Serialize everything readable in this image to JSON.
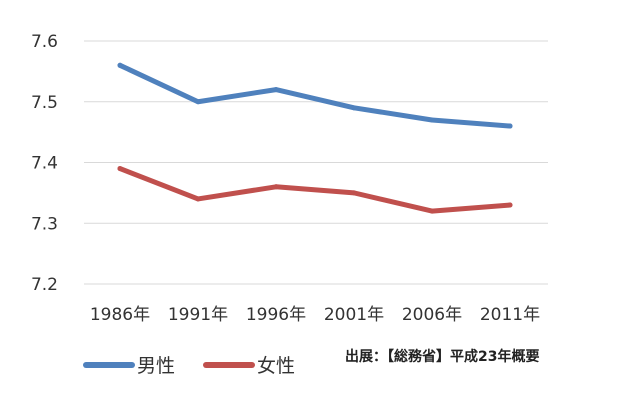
{
  "chart_data": {
    "type": "line",
    "categories": [
      "1986年",
      "1991年",
      "1996年",
      "2001年",
      "2006年",
      "2011年"
    ],
    "series": [
      {
        "name": "男性",
        "values": [
          7.56,
          7.5,
          7.52,
          7.49,
          7.47,
          7.46
        ],
        "color": "#4f81bd"
      },
      {
        "name": "女性",
        "values": [
          7.39,
          7.34,
          7.36,
          7.35,
          7.32,
          7.33
        ],
        "color": "#c0504d"
      }
    ],
    "yticks": [
      "7.2",
      "7.3",
      "7.4",
      "7.5",
      "7.6"
    ],
    "ylim": [
      7.2,
      7.6
    ],
    "grid": true,
    "legend_position": "bottom-left",
    "title": "",
    "xlabel": "",
    "ylabel": ""
  },
  "source_note": "出展：【総務省】平成23年概要"
}
